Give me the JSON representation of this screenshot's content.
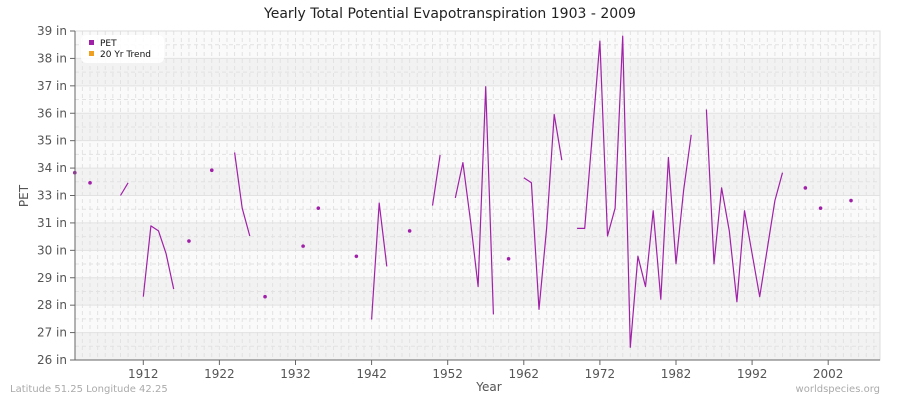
{
  "title": "Yearly Total Potential Evapotranspiration 1903 - 2009",
  "footer": {
    "location": "Latitude 51.25 Longitude 42.25",
    "source": "worldspecies.org"
  },
  "colors": {
    "series": "#a020a8",
    "trend": "#f0a020",
    "band_light": "#fafafa",
    "band_dark": "#f2f2f2",
    "grid": "#e2e2e2",
    "axis": "#666666"
  },
  "chart_data": {
    "type": "line",
    "title": "Yearly Total Potential Evapotranspiration 1903 - 2009",
    "xlabel": "Year",
    "ylabel": "PET",
    "xlim": [
      1903,
      2009
    ],
    "ylim": [
      26,
      39
    ],
    "y_tick_labels": [
      "39 in",
      "38 in",
      "37 in",
      "36 in",
      "35 in",
      "34 in",
      "33 in",
      "31 in",
      "30 in",
      "29 in",
      "28 in",
      "27 in",
      "26 in"
    ],
    "x_tick_labels": [
      "1912",
      "1922",
      "1932",
      "1942",
      "1952",
      "1962",
      "1972",
      "1982",
      "1992",
      "2002"
    ],
    "x_ticks": [
      1912,
      1922,
      1932,
      1942,
      1952,
      1962,
      1972,
      1982,
      1992,
      2002
    ],
    "grid": true,
    "legend_position": "top-left",
    "legend": [
      {
        "label": "PET",
        "color": "#a020a8"
      },
      {
        "label": "20 Yr Trend",
        "color": "#f0a020"
      }
    ],
    "series": [
      {
        "name": "PET",
        "segments": [
          [
            [
              1903,
              33.4
            ]
          ],
          [
            [
              1905,
              33.0
            ]
          ],
          [
            [
              1909,
              32.5
            ],
            [
              1910,
              33.0
            ]
          ],
          [
            [
              1912,
              28.5
            ],
            [
              1913,
              31.3
            ],
            [
              1914,
              31.1
            ],
            [
              1915,
              30.2
            ],
            [
              1916,
              28.8
            ]
          ],
          [
            [
              1918,
              30.7
            ]
          ],
          [
            [
              1921,
              33.5
            ]
          ],
          [
            [
              1924,
              34.2
            ],
            [
              1925,
              32.0
            ],
            [
              1926,
              30.9
            ]
          ],
          [
            [
              1928,
              28.5
            ]
          ],
          [
            [
              1933,
              30.5
            ]
          ],
          [
            [
              1935,
              32.0
            ]
          ],
          [
            [
              1940,
              30.1
            ]
          ],
          [
            [
              1942,
              27.6
            ],
            [
              1943,
              32.2
            ],
            [
              1944,
              29.7
            ]
          ],
          [
            [
              1947,
              31.1
            ]
          ],
          [
            [
              1950,
              32.1
            ],
            [
              1951,
              34.1
            ]
          ],
          [
            [
              1953,
              32.4
            ],
            [
              1954,
              33.8
            ],
            [
              1955,
              31.5
            ],
            [
              1956,
              28.9
            ],
            [
              1957,
              36.8
            ],
            [
              1958,
              27.8
            ]
          ],
          [
            [
              1960,
              30.0
            ]
          ],
          [
            [
              1962,
              33.2
            ],
            [
              1963,
              33.0
            ],
            [
              1964,
              28.0
            ],
            [
              1965,
              31.2
            ],
            [
              1966,
              35.7
            ],
            [
              1967,
              33.9
            ]
          ],
          [
            [
              1969,
              31.2
            ],
            [
              1970,
              31.2
            ],
            [
              1971,
              34.9
            ],
            [
              1972,
              38.6
            ],
            [
              1973,
              30.9
            ],
            [
              1974,
              32.0
            ],
            [
              1975,
              38.8
            ],
            [
              1976,
              26.5
            ],
            [
              1977,
              30.1
            ],
            [
              1978,
              28.9
            ],
            [
              1979,
              31.9
            ],
            [
              1980,
              28.4
            ],
            [
              1981,
              34.0
            ],
            [
              1982,
              29.8
            ],
            [
              1983,
              32.7
            ],
            [
              1984,
              34.9
            ]
          ],
          [
            [
              1986,
              35.9
            ],
            [
              1987,
              29.8
            ],
            [
              1988,
              32.8
            ],
            [
              1989,
              31.1
            ],
            [
              1990,
              28.3
            ],
            [
              1991,
              31.9
            ],
            [
              1992,
              30.2
            ],
            [
              1993,
              28.5
            ],
            [
              1994,
              30.4
            ],
            [
              1995,
              32.3
            ],
            [
              1996,
              33.4
            ]
          ],
          [
            [
              1999,
              32.8
            ]
          ],
          [
            [
              2001,
              32.0
            ]
          ],
          [
            [
              2005,
              32.3
            ]
          ]
        ]
      },
      {
        "name": "20 Yr Trend",
        "segments": []
      }
    ]
  }
}
